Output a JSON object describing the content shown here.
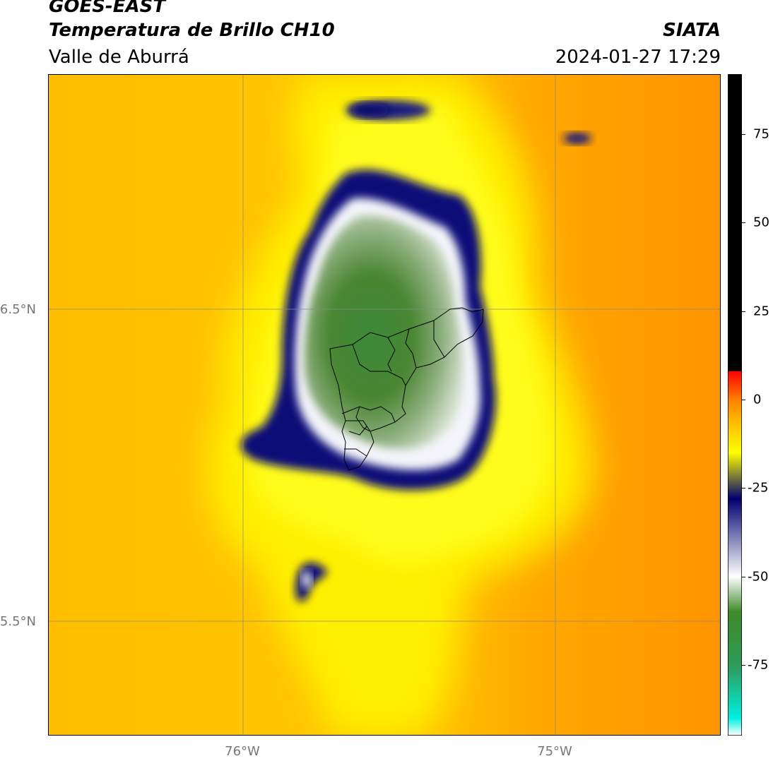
{
  "header": {
    "satellite": "GOES-EAST",
    "product": "Temperatura de Brillo CH10",
    "region": "Valle de Aburrá",
    "agency": "SIATA",
    "datetime": "2024-01-27 17:29"
  },
  "axes": {
    "lat_ticks": [
      {
        "label": "6.5°N",
        "value": 6.5
      },
      {
        "label": "5.5°N",
        "value": 5.5
      }
    ],
    "lon_ticks": [
      {
        "label": "76°W",
        "value": -76.0
      },
      {
        "label": "75°W",
        "value": -75.0
      }
    ],
    "lat_range": [
      5.13,
      7.25
    ],
    "lon_range": [
      -76.62,
      -74.47
    ]
  },
  "colorbar": {
    "ticks": [
      "75",
      "50",
      "25",
      "0",
      "-25",
      "-50",
      "-75"
    ],
    "tick_values": [
      75,
      50,
      25,
      0,
      -25,
      -50,
      -75
    ],
    "range": [
      -95,
      92
    ],
    "stops": [
      {
        "v": -95,
        "c": "#ffffff"
      },
      {
        "v": -90,
        "c": "#00f0e0"
      },
      {
        "v": -75,
        "c": "#2e9a57"
      },
      {
        "v": -60,
        "c": "#3f8a2a"
      },
      {
        "v": -50,
        "c": "#ffffff"
      },
      {
        "v": -28,
        "c": "#00006e"
      },
      {
        "v": -15,
        "c": "#ffff00"
      },
      {
        "v": -5,
        "c": "#ffb000"
      },
      {
        "v": 0,
        "c": "#ff8000"
      },
      {
        "v": 8,
        "c": "#ff0000"
      },
      {
        "v": 8.1,
        "c": "#000000"
      },
      {
        "v": 92,
        "c": "#000000"
      }
    ]
  },
  "colors": {
    "background_warm": "#ff9a00",
    "background_mid": "#ffc000",
    "yellow": "#ffee00",
    "dark_blue": "#0a0a78",
    "white_ring": "#f2f2f8",
    "green_core": "#4a8a35",
    "grid": "#8a8a8a"
  }
}
